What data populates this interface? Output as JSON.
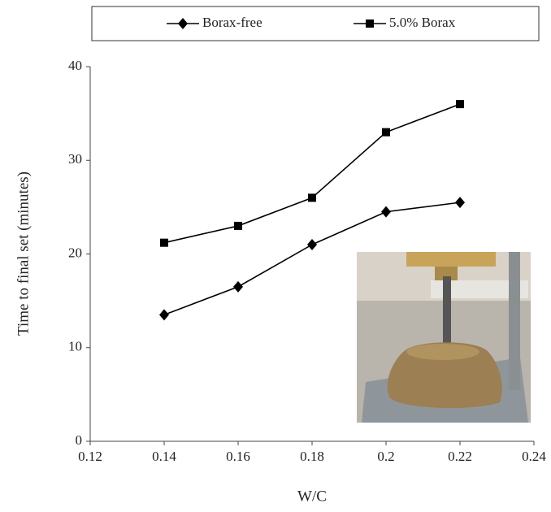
{
  "chart_data": {
    "type": "line",
    "x_label": "W/C",
    "y_label": "Time to final set (minutes)",
    "x": [
      0.14,
      0.16,
      0.18,
      0.2,
      0.22
    ],
    "series": [
      {
        "name": "Borax-free",
        "color": "#000000",
        "marker": "diamond",
        "values": [
          13.5,
          16.5,
          21,
          24.5,
          25.5
        ]
      },
      {
        "name": "5.0% Borax",
        "color": "#000000",
        "marker": "square",
        "values": [
          21.2,
          23,
          26,
          33,
          36
        ]
      }
    ],
    "xlim": [
      0.12,
      0.24
    ],
    "xticks": [
      0.12,
      0.14,
      0.16,
      0.18,
      0.2,
      0.22,
      0.24
    ],
    "ylim": [
      0,
      40
    ],
    "yticks": [
      0,
      10,
      20,
      30,
      40
    ],
    "grid": false,
    "legend": "top"
  }
}
